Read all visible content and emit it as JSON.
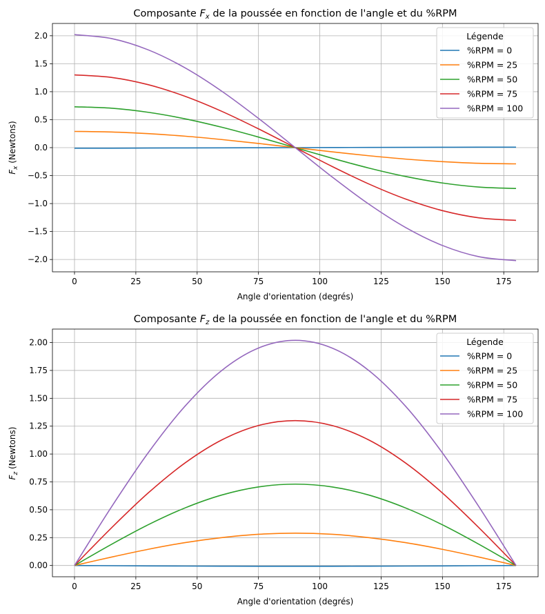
{
  "chart_data": [
    {
      "type": "line",
      "title_parts": [
        "Composante ",
        "F",
        "x",
        " de la poussée en fonction de l'angle et du %RPM"
      ],
      "xlabel": "Angle d'orientation (degrés)",
      "ylabel_parts": [
        "F",
        "x",
        " (Newtons)"
      ],
      "xlim": [
        -9,
        189
      ],
      "ylim": [
        -2.22,
        2.22
      ],
      "xticks": [
        0,
        25,
        50,
        75,
        100,
        125,
        150,
        175
      ],
      "yticks": [
        -2.0,
        -1.5,
        -1.0,
        -0.5,
        0.0,
        0.5,
        1.0,
        1.5,
        2.0
      ],
      "ytick_labels": [
        "−2.0",
        "−1.5",
        "−1.0",
        "−0.5",
        "0.0",
        "0.5",
        "1.0",
        "1.5",
        "2.0"
      ],
      "grid": true,
      "legend": {
        "title": "Légende",
        "position": "top-right"
      },
      "series": [
        {
          "name": "%RPM = 0",
          "color": "#1f77b4",
          "x": [
            0,
            15,
            30,
            45,
            60,
            75,
            90,
            105,
            120,
            135,
            150,
            165,
            180
          ],
          "y": [
            -0.01,
            -0.01,
            -0.007,
            -0.005,
            -0.004,
            -0.002,
            0.0,
            0.002,
            0.004,
            0.005,
            0.007,
            0.008,
            0.008
          ]
        },
        {
          "name": "%RPM = 25",
          "color": "#ff7f0e",
          "x": [
            0,
            15,
            30,
            45,
            60,
            75,
            90,
            105,
            120,
            135,
            150,
            165,
            180
          ],
          "y": [
            0.29,
            0.28,
            0.25,
            0.205,
            0.145,
            0.075,
            0.0,
            -0.075,
            -0.145,
            -0.205,
            -0.25,
            -0.28,
            -0.29
          ]
        },
        {
          "name": "%RPM = 50",
          "color": "#2ca02c",
          "x": [
            0,
            15,
            30,
            45,
            60,
            75,
            90,
            105,
            120,
            135,
            150,
            165,
            180
          ],
          "y": [
            0.73,
            0.705,
            0.632,
            0.516,
            0.365,
            0.189,
            0.0,
            -0.189,
            -0.365,
            -0.516,
            -0.632,
            -0.705,
            -0.73
          ]
        },
        {
          "name": "%RPM = 75",
          "color": "#d62728",
          "x": [
            0,
            15,
            30,
            45,
            60,
            75,
            90,
            105,
            120,
            135,
            150,
            165,
            180
          ],
          "y": [
            1.3,
            1.256,
            1.126,
            0.919,
            0.65,
            0.336,
            0.0,
            -0.336,
            -0.65,
            -0.919,
            -1.126,
            -1.256,
            -1.3
          ]
        },
        {
          "name": "%RPM = 100",
          "color": "#9467bd",
          "x": [
            0,
            15,
            30,
            45,
            60,
            75,
            90,
            105,
            120,
            135,
            150,
            165,
            180
          ],
          "y": [
            2.02,
            1.951,
            1.749,
            1.428,
            1.01,
            0.523,
            0.0,
            -0.523,
            -1.01,
            -1.428,
            -1.749,
            -1.951,
            -2.02
          ]
        }
      ]
    },
    {
      "type": "line",
      "title_parts": [
        "Composante ",
        "F",
        "z",
        " de la poussée en fonction de l'angle et du %RPM"
      ],
      "xlabel": "Angle d'orientation (degrés)",
      "ylabel_parts": [
        "F",
        "z",
        " (Newtons)"
      ],
      "xlim": [
        -9,
        189
      ],
      "ylim": [
        -0.101,
        2.121
      ],
      "xticks": [
        0,
        25,
        50,
        75,
        100,
        125,
        150,
        175
      ],
      "yticks": [
        0.0,
        0.25,
        0.5,
        0.75,
        1.0,
        1.25,
        1.5,
        1.75,
        2.0
      ],
      "ytick_labels": [
        "0.00",
        "0.25",
        "0.50",
        "0.75",
        "1.00",
        "1.25",
        "1.50",
        "1.75",
        "2.00"
      ],
      "grid": true,
      "legend": {
        "title": "Légende",
        "position": "top-right"
      },
      "series": [
        {
          "name": "%RPM = 0",
          "color": "#1f77b4",
          "x": [
            0,
            15,
            30,
            45,
            60,
            75,
            90,
            105,
            120,
            135,
            150,
            165,
            180
          ],
          "y": [
            0.0,
            -0.002,
            -0.004,
            -0.005,
            -0.006,
            -0.007,
            -0.007,
            -0.007,
            -0.006,
            -0.005,
            -0.004,
            -0.002,
            0.0
          ]
        },
        {
          "name": "%RPM = 25",
          "color": "#ff7f0e",
          "x": [
            0,
            15,
            30,
            45,
            60,
            75,
            90,
            105,
            120,
            135,
            150,
            165,
            180
          ],
          "y": [
            0.0,
            0.075,
            0.145,
            0.205,
            0.25,
            0.28,
            0.29,
            0.28,
            0.25,
            0.205,
            0.145,
            0.075,
            0.0
          ]
        },
        {
          "name": "%RPM = 50",
          "color": "#2ca02c",
          "x": [
            0,
            15,
            30,
            45,
            60,
            75,
            90,
            105,
            120,
            135,
            150,
            165,
            180
          ],
          "y": [
            0.0,
            0.189,
            0.365,
            0.516,
            0.632,
            0.705,
            0.73,
            0.705,
            0.632,
            0.516,
            0.365,
            0.189,
            0.0
          ]
        },
        {
          "name": "%RPM = 75",
          "color": "#d62728",
          "x": [
            0,
            15,
            30,
            45,
            60,
            75,
            90,
            105,
            120,
            135,
            150,
            165,
            180
          ],
          "y": [
            0.0,
            0.336,
            0.65,
            0.919,
            1.126,
            1.256,
            1.3,
            1.256,
            1.126,
            0.919,
            0.65,
            0.336,
            0.0
          ]
        },
        {
          "name": "%RPM = 100",
          "color": "#9467bd",
          "x": [
            0,
            15,
            30,
            45,
            60,
            75,
            90,
            105,
            120,
            135,
            150,
            165,
            180
          ],
          "y": [
            0.0,
            0.523,
            1.01,
            1.428,
            1.749,
            1.951,
            2.02,
            1.951,
            1.749,
            1.428,
            1.01,
            0.523,
            0.0
          ]
        }
      ]
    }
  ]
}
